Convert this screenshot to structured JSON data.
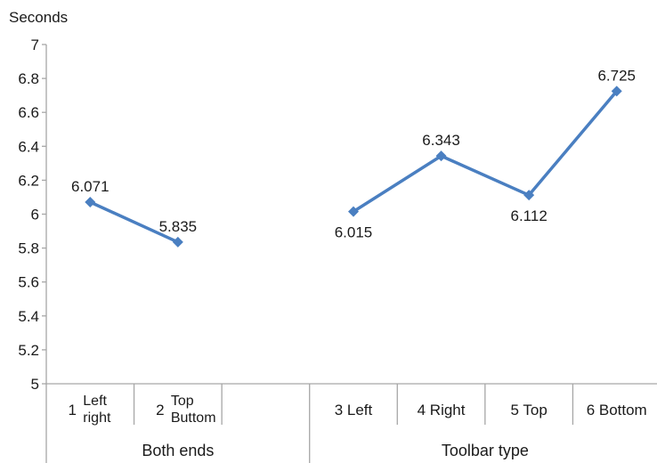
{
  "chart_data": {
    "type": "line",
    "title": "",
    "ylabel": "Seconds",
    "xlabel": "",
    "ylim": [
      5,
      7
    ],
    "yticks": [
      "5",
      "5.2",
      "5.4",
      "5.6",
      "5.8",
      "6",
      "6.2",
      "6.4",
      "6.6",
      "6.8",
      "7"
    ],
    "grid": false,
    "series_color": "#4a7fc1",
    "categories": [
      {
        "num": "1",
        "label": [
          "Left",
          "right"
        ]
      },
      {
        "num": "2",
        "label": [
          "Top",
          "Buttom"
        ]
      },
      {
        "num": "",
        "label": []
      },
      {
        "num": "3",
        "label": [
          "Left"
        ]
      },
      {
        "num": "4",
        "label": [
          "Right"
        ]
      },
      {
        "num": "5",
        "label": [
          "Top"
        ]
      },
      {
        "num": "6",
        "label": [
          "Bottom"
        ]
      }
    ],
    "groups": [
      {
        "label": "Both ends",
        "span": [
          0,
          2
        ]
      },
      {
        "label": "Toolbar type",
        "span": [
          3,
          6
        ]
      }
    ],
    "series": [
      {
        "segments": [
          [
            {
              "cat": 0,
              "y": 6.071,
              "label": "6.071",
              "label_pos": "above"
            },
            {
              "cat": 1,
              "y": 5.835,
              "label": "5.835",
              "label_pos": "above"
            }
          ],
          [
            {
              "cat": 3,
              "y": 6.015,
              "label": "6.015",
              "label_pos": "below"
            },
            {
              "cat": 4,
              "y": 6.343,
              "label": "6.343",
              "label_pos": "above"
            },
            {
              "cat": 5,
              "y": 6.112,
              "label": "6.112",
              "label_pos": "below"
            },
            {
              "cat": 6,
              "y": 6.725,
              "label": "6.725",
              "label_pos": "above"
            }
          ]
        ]
      }
    ]
  }
}
